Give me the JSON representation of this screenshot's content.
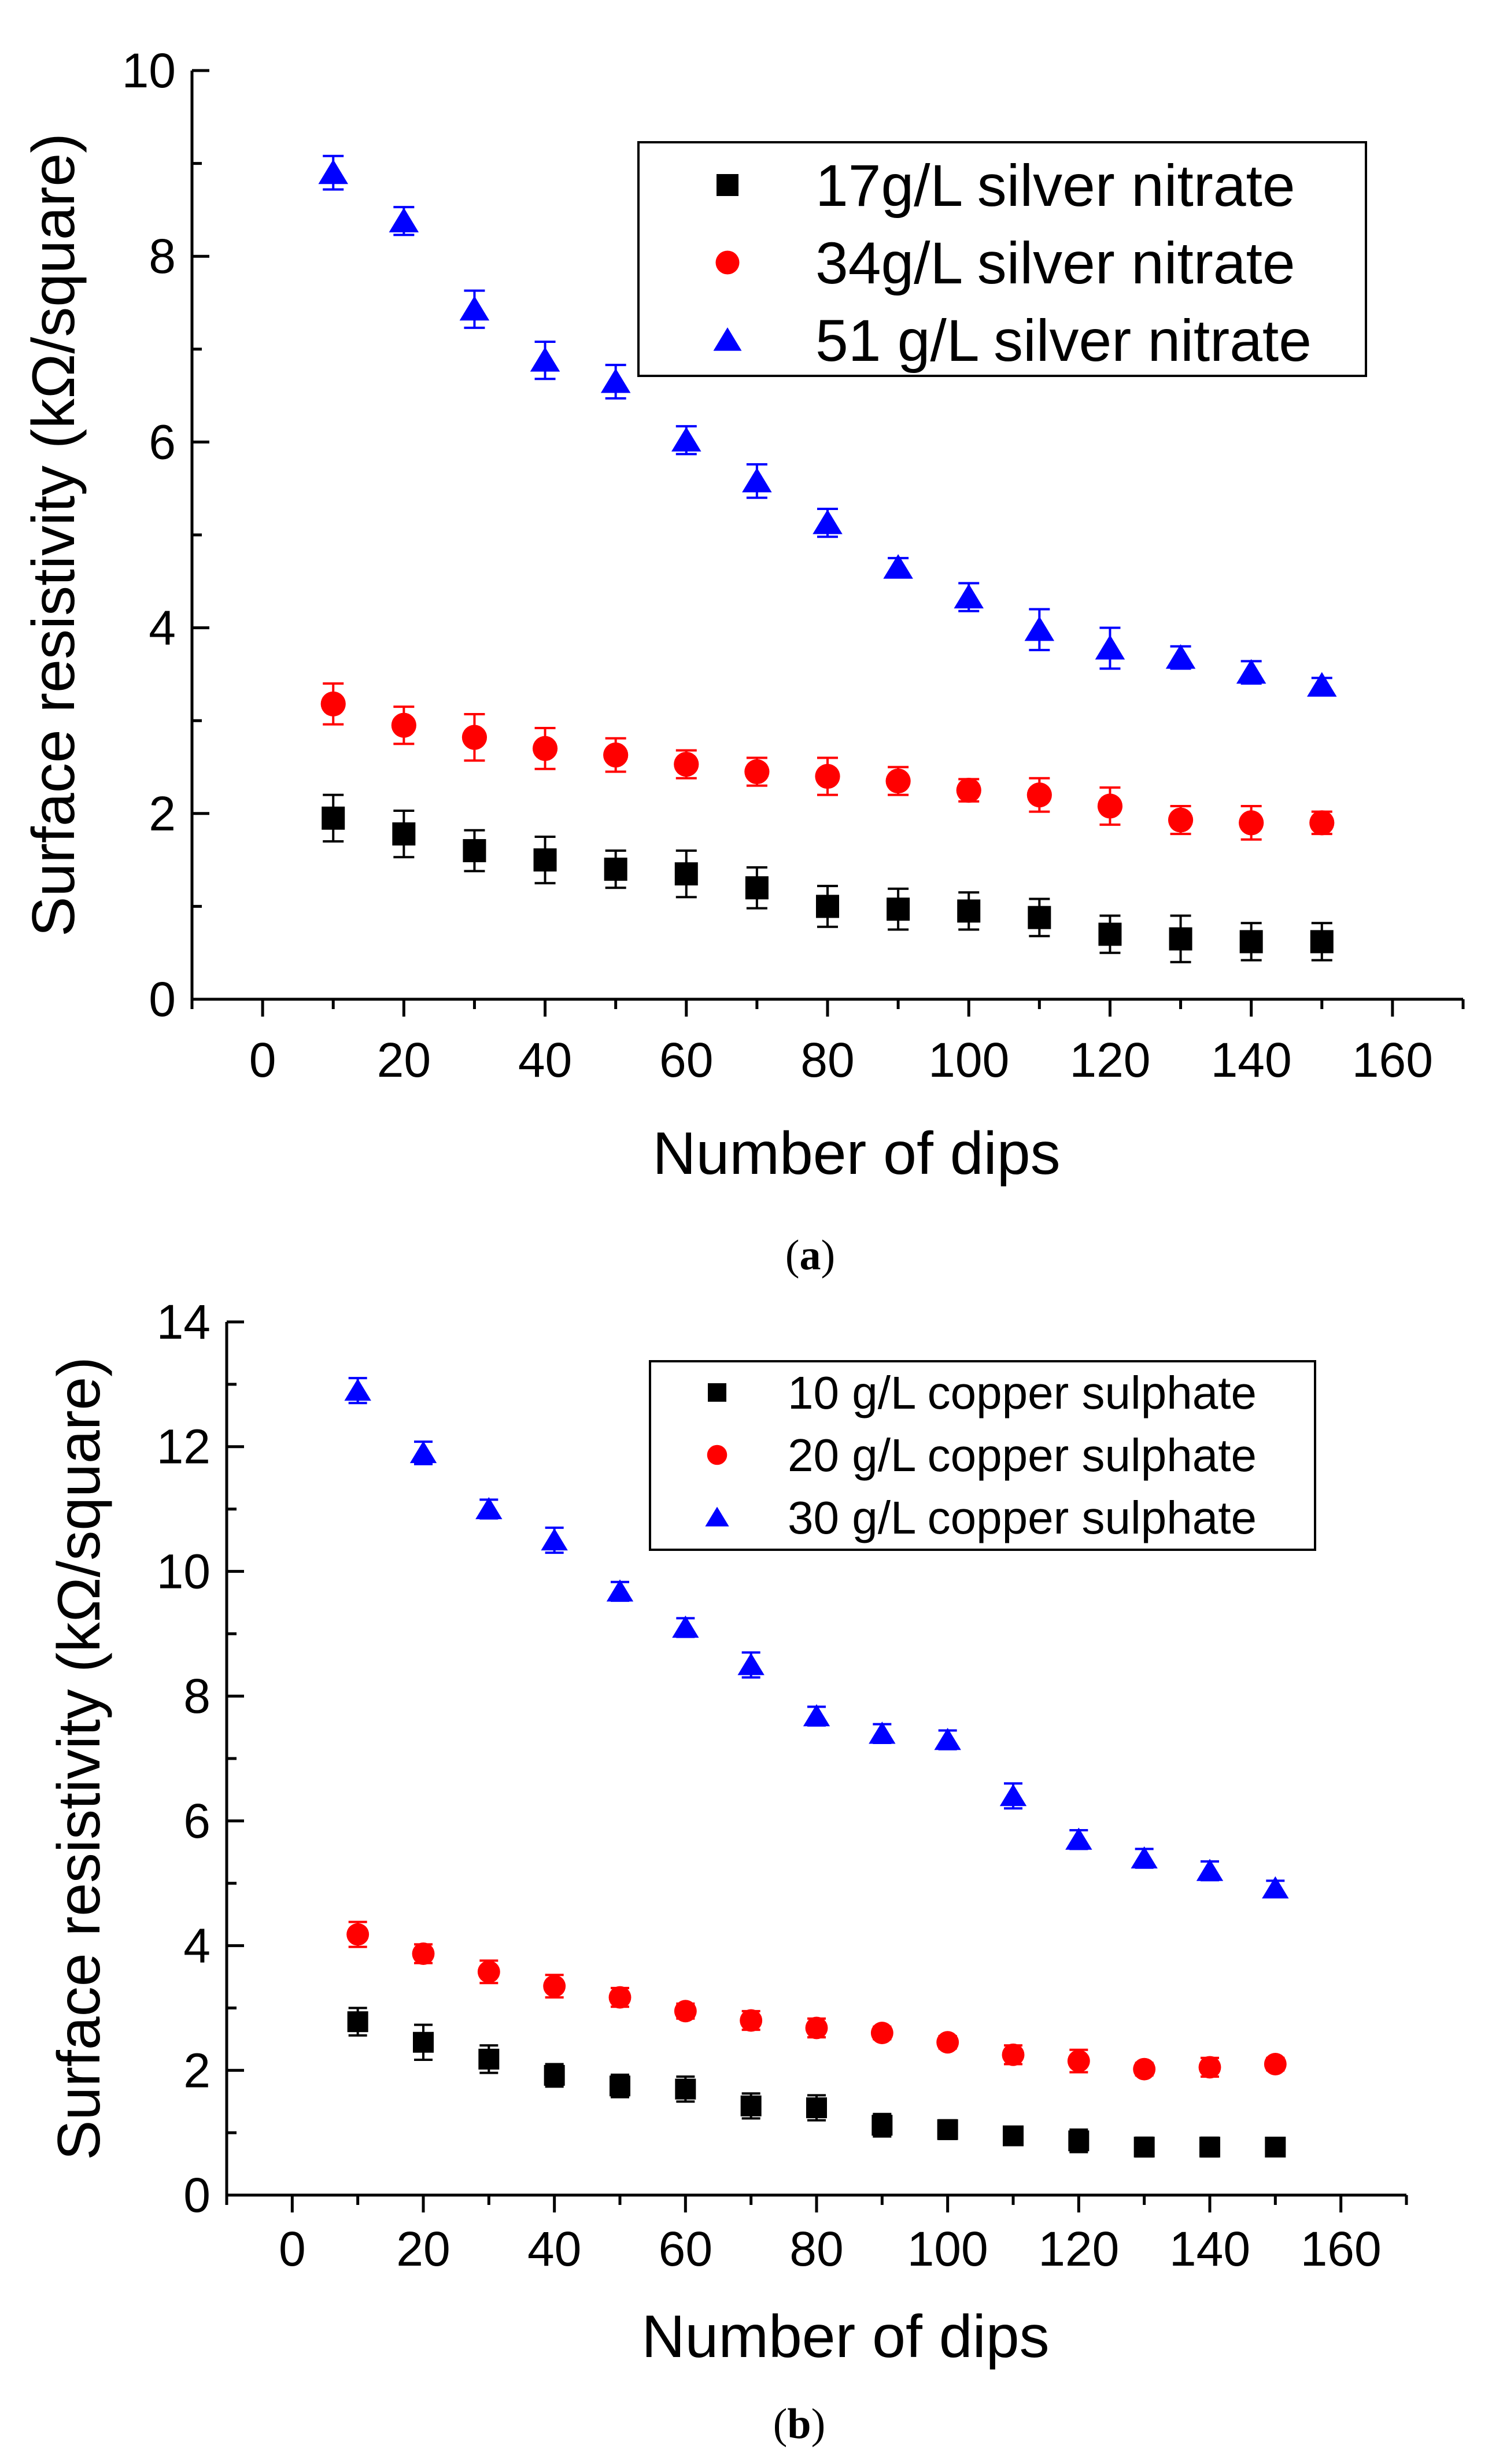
{
  "chart_data": [
    {
      "type": "scatter",
      "caption_letter": "a",
      "xlabel": "Number of dips",
      "ylabel": "Surface resistivity (kΩ/square)",
      "xlim": [
        -10,
        170
      ],
      "ylim": [
        0,
        10
      ],
      "xticks": [
        "0",
        "20",
        "40",
        "60",
        "80",
        "100",
        "120",
        "140",
        "160"
      ],
      "yticks": [
        "0",
        "2",
        "4",
        "6",
        "8",
        "10"
      ],
      "legend_position": "top-right",
      "x": [
        10,
        20,
        30,
        40,
        50,
        60,
        70,
        80,
        90,
        100,
        110,
        120,
        130,
        140,
        150
      ],
      "series": [
        {
          "name": "17g/L silver nitrate",
          "marker": "square",
          "color": "#000000",
          "values": [
            1.95,
            1.78,
            1.6,
            1.5,
            1.4,
            1.35,
            1.2,
            1.0,
            0.97,
            0.95,
            0.88,
            0.7,
            0.65,
            0.62,
            0.62
          ],
          "errors": [
            0.25,
            0.25,
            0.22,
            0.25,
            0.2,
            0.25,
            0.22,
            0.22,
            0.22,
            0.2,
            0.2,
            0.2,
            0.25,
            0.2,
            0.2
          ]
        },
        {
          "name": "34g/L silver nitrate",
          "marker": "circle",
          "color": "#ff0000",
          "values": [
            3.18,
            2.95,
            2.82,
            2.7,
            2.63,
            2.53,
            2.45,
            2.4,
            2.35,
            2.25,
            2.2,
            2.08,
            1.93,
            1.9,
            1.9
          ],
          "errors": [
            0.22,
            0.2,
            0.25,
            0.22,
            0.18,
            0.15,
            0.15,
            0.2,
            0.15,
            0.12,
            0.18,
            0.2,
            0.15,
            0.18,
            0.12
          ]
        },
        {
          "name": "51 g/L silver nitrate",
          "marker": "triangle",
          "color": "#0000ff",
          "values": [
            8.9,
            8.38,
            7.43,
            6.88,
            6.65,
            6.02,
            5.58,
            5.13,
            4.65,
            4.33,
            3.98,
            3.78,
            3.68,
            3.52,
            3.38
          ],
          "errors": [
            0.18,
            0.15,
            0.2,
            0.2,
            0.18,
            0.15,
            0.18,
            0.15,
            0.1,
            0.15,
            0.22,
            0.22,
            0.12,
            0.12,
            0.08
          ]
        }
      ]
    },
    {
      "type": "scatter",
      "caption_letter": "b",
      "xlabel": "Number of dips",
      "ylabel": "Surface resistivity (kΩ/square)",
      "xlim": [
        -10,
        170
      ],
      "ylim": [
        0,
        14
      ],
      "xticks": [
        "0",
        "20",
        "40",
        "60",
        "80",
        "100",
        "120",
        "140",
        "160"
      ],
      "yticks": [
        "0",
        "2",
        "4",
        "6",
        "8",
        "10",
        "12",
        "14"
      ],
      "legend_position": "top-right",
      "x": [
        10,
        20,
        30,
        40,
        50,
        60,
        70,
        80,
        90,
        100,
        110,
        120,
        130,
        140,
        150
      ],
      "series": [
        {
          "name": "10 g/L copper sulphate",
          "marker": "square",
          "color": "#000000",
          "values": [
            2.78,
            2.45,
            2.18,
            1.92,
            1.75,
            1.7,
            1.43,
            1.4,
            1.12,
            1.05,
            0.95,
            0.87,
            0.77,
            0.77,
            0.77
          ],
          "errors": [
            0.22,
            0.28,
            0.22,
            0.18,
            0.18,
            0.2,
            0.2,
            0.2,
            0.18,
            0.15,
            0.12,
            0.18,
            0.15,
            0.15,
            0.12
          ]
        },
        {
          "name": "20 g/L copper sulphate",
          "marker": "circle",
          "color": "#ff0000",
          "values": [
            4.18,
            3.87,
            3.58,
            3.35,
            3.17,
            2.95,
            2.8,
            2.68,
            2.6,
            2.45,
            2.25,
            2.15,
            2.02,
            2.05,
            2.1
          ],
          "errors": [
            0.2,
            0.15,
            0.18,
            0.18,
            0.15,
            0.12,
            0.15,
            0.15,
            0.1,
            0.1,
            0.15,
            0.18,
            0.1,
            0.15,
            0.1
          ]
        },
        {
          "name": "30 g/L copper sulphate",
          "marker": "triangle",
          "color": "#0000ff",
          "values": [
            12.9,
            11.9,
            11.0,
            10.5,
            9.68,
            9.1,
            8.5,
            7.68,
            7.4,
            7.3,
            6.4,
            5.7,
            5.4,
            5.2,
            4.92
          ],
          "errors": [
            0.2,
            0.18,
            0.15,
            0.2,
            0.15,
            0.15,
            0.2,
            0.15,
            0.15,
            0.15,
            0.2,
            0.15,
            0.15,
            0.15,
            0.12
          ]
        }
      ]
    }
  ],
  "palette": {
    "axis": "#000000",
    "background": "#ffffff"
  }
}
